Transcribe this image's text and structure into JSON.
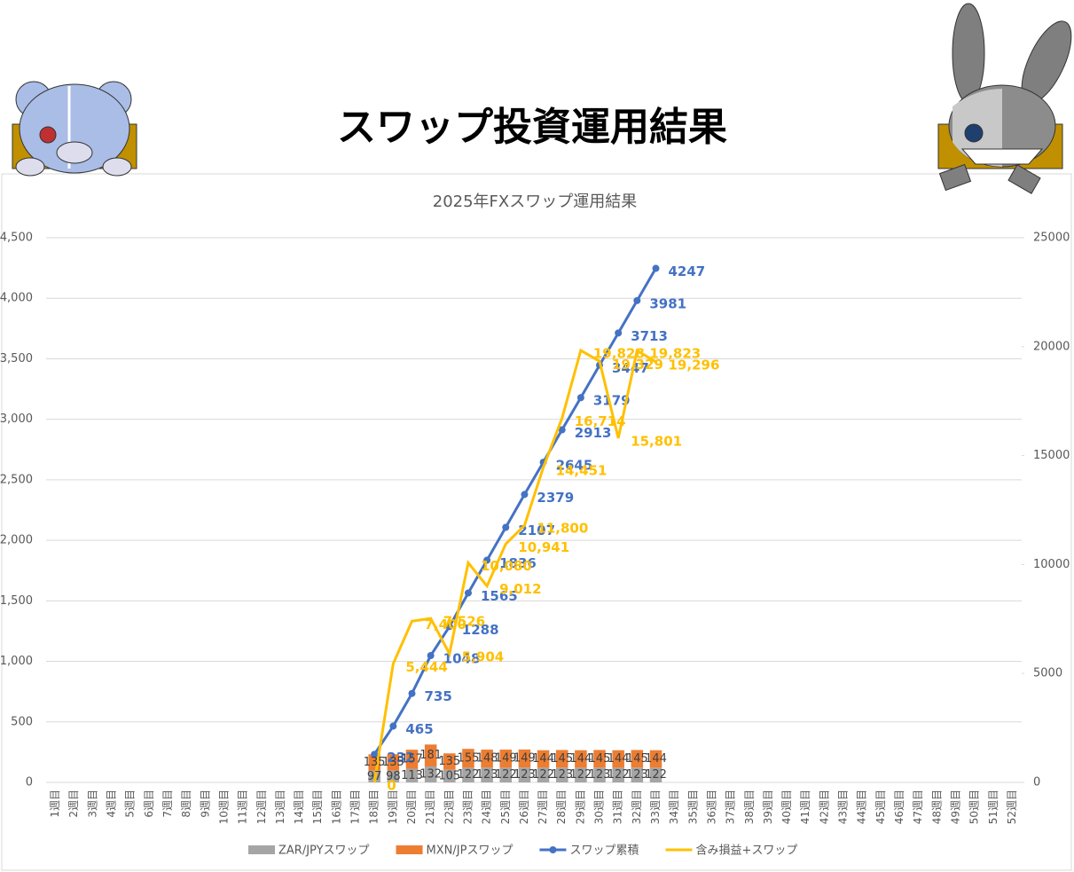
{
  "title": "スワップ投資運用結果",
  "chart_data": {
    "type": "bar",
    "title": "2025年FXスワップ運用結果",
    "stacked": true,
    "grid": true,
    "legend": "bottom",
    "categories": [
      "1週目",
      "2週目",
      "3週目",
      "4週目",
      "5週目",
      "6週目",
      "7週目",
      "8週目",
      "9週目",
      "10週目",
      "11週目",
      "12週目",
      "13週目",
      "14週目",
      "15週目",
      "16週目",
      "17週目",
      "18週目",
      "19週目",
      "20週目",
      "21週目",
      "22週目",
      "23週目",
      "24週目",
      "25週目",
      "26週目",
      "27週目",
      "28週目",
      "29週目",
      "30週目",
      "31週目",
      "32週目",
      "33週目",
      "34週目",
      "35週目",
      "36週目",
      "37週目",
      "38週目",
      "39週目",
      "40週目",
      "41週目",
      "42週目",
      "43週目",
      "44週目",
      "45週目",
      "46週目",
      "47週目",
      "48週目",
      "49週目",
      "50週目",
      "51週目",
      "52週目"
    ],
    "series": [
      {
        "name": "ZAR/JPYスワップ",
        "color": "#a5a5a5",
        "type": "bar",
        "values": [
          null,
          null,
          null,
          null,
          null,
          null,
          null,
          null,
          null,
          null,
          null,
          null,
          null,
          null,
          null,
          null,
          null,
          97,
          98,
          113,
          132,
          105,
          122,
          123,
          122,
          123,
          122,
          123,
          122,
          123,
          122,
          123,
          122,
          null,
          null,
          null,
          null,
          null,
          null,
          null,
          null,
          null,
          null,
          null,
          null,
          null,
          null,
          null,
          null,
          null,
          null,
          null
        ]
      },
      {
        "name": "MXN/JPスワップ",
        "color": "#ed7d31",
        "type": "bar",
        "values": [
          null,
          null,
          null,
          null,
          null,
          null,
          null,
          null,
          null,
          null,
          null,
          null,
          null,
          null,
          null,
          null,
          null,
          135,
          135,
          157,
          181,
          135,
          155,
          148,
          149,
          149,
          144,
          145,
          144,
          145,
          144,
          145,
          144,
          null,
          null,
          null,
          null,
          null,
          null,
          null,
          null,
          null,
          null,
          null,
          null,
          null,
          null,
          null,
          null,
          null,
          null,
          null
        ]
      },
      {
        "name": "スワップ累積",
        "color": "#4472c4",
        "type": "line",
        "marker": true,
        "values": [
          null,
          null,
          null,
          null,
          null,
          null,
          null,
          null,
          null,
          null,
          null,
          null,
          null,
          null,
          null,
          null,
          null,
          232,
          465,
          735,
          1048,
          1288,
          1565,
          1836,
          2107,
          2379,
          2645,
          2913,
          3179,
          3447,
          3713,
          3981,
          4247,
          null,
          null,
          null,
          null,
          null,
          null,
          null,
          null,
          null,
          null,
          null,
          null,
          null,
          null,
          null,
          null,
          null,
          null,
          null
        ]
      },
      {
        "name": "含み損益+スワップ",
        "color": "#ffc000",
        "type": "line",
        "axis": "y2",
        "values": [
          null,
          null,
          null,
          null,
          null,
          null,
          null,
          null,
          null,
          null,
          null,
          null,
          null,
          null,
          null,
          null,
          null,
          0,
          5444,
          7400,
          7526,
          5904,
          10080,
          9012,
          10941,
          11800,
          14451,
          16714,
          19828,
          19329,
          15801,
          19823,
          19296,
          null,
          null,
          null,
          null,
          null,
          null,
          null,
          null,
          null,
          null,
          null,
          null,
          null,
          null,
          null,
          null,
          null,
          null,
          null
        ],
        "value_labels": [
          null,
          null,
          null,
          null,
          null,
          null,
          null,
          null,
          null,
          null,
          null,
          null,
          null,
          null,
          null,
          null,
          null,
          "0",
          "5,444",
          "7,400",
          "7,526",
          "5,904",
          "10,080",
          "9,012",
          "10,941",
          "11,800",
          "14,451",
          "16,714",
          "19,828",
          "19,329",
          "15,801",
          "19,823",
          "19,296",
          null,
          null,
          null,
          null,
          null,
          null,
          null,
          null,
          null,
          null,
          null,
          null,
          null,
          null,
          null,
          null,
          null,
          null,
          null
        ]
      }
    ],
    "ylim": [
      0,
      4500
    ],
    "yticks": [
      0,
      500,
      {
        "value": 1000,
        "label": "1,000"
      },
      {
        "value": 1500,
        "label": "1,500"
      },
      {
        "value": 2000,
        "label": "2,000"
      },
      {
        "value": 2500,
        "label": "2,500"
      },
      {
        "value": 3000,
        "label": "3,000"
      },
      {
        "value": 3500,
        "label": "3,500"
      },
      {
        "value": 4000,
        "label": "4,000"
      },
      {
        "value": 4500,
        "label": "4,500"
      }
    ],
    "y2lim": [
      0,
      25000
    ],
    "y2ticks": [
      0,
      5000,
      10000,
      15000,
      20000,
      25000
    ]
  }
}
